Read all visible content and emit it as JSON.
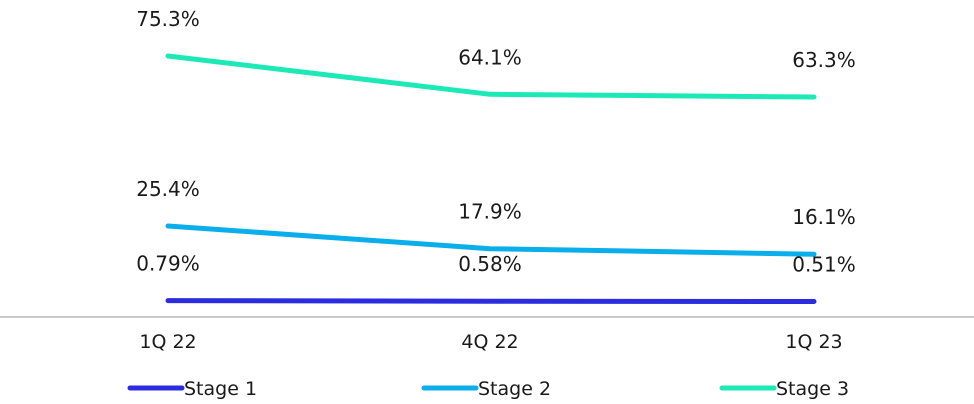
{
  "chart_data": {
    "type": "line",
    "categories": [
      "1Q 22",
      "4Q 22",
      "1Q 23"
    ],
    "series": [
      {
        "name": "Stage 1",
        "values": [
          0.79,
          0.58,
          0.51
        ],
        "labels": [
          "0.79%",
          "0.58%",
          "0.51%"
        ],
        "color": "#2b2be0"
      },
      {
        "name": "Stage 2",
        "values": [
          25.4,
          17.9,
          16.1
        ],
        "labels": [
          "25.4%",
          "17.9%",
          "16.1%"
        ],
        "color": "#0aaeea"
      },
      {
        "name": "Stage 3",
        "values": [
          75.3,
          64.1,
          63.3
        ],
        "labels": [
          "75.3%",
          "64.1%",
          "63.3%"
        ],
        "color": "#1de9b6"
      }
    ],
    "axis_line_color": "#aaaaaa",
    "grid": false,
    "legend_position": "bottom"
  }
}
